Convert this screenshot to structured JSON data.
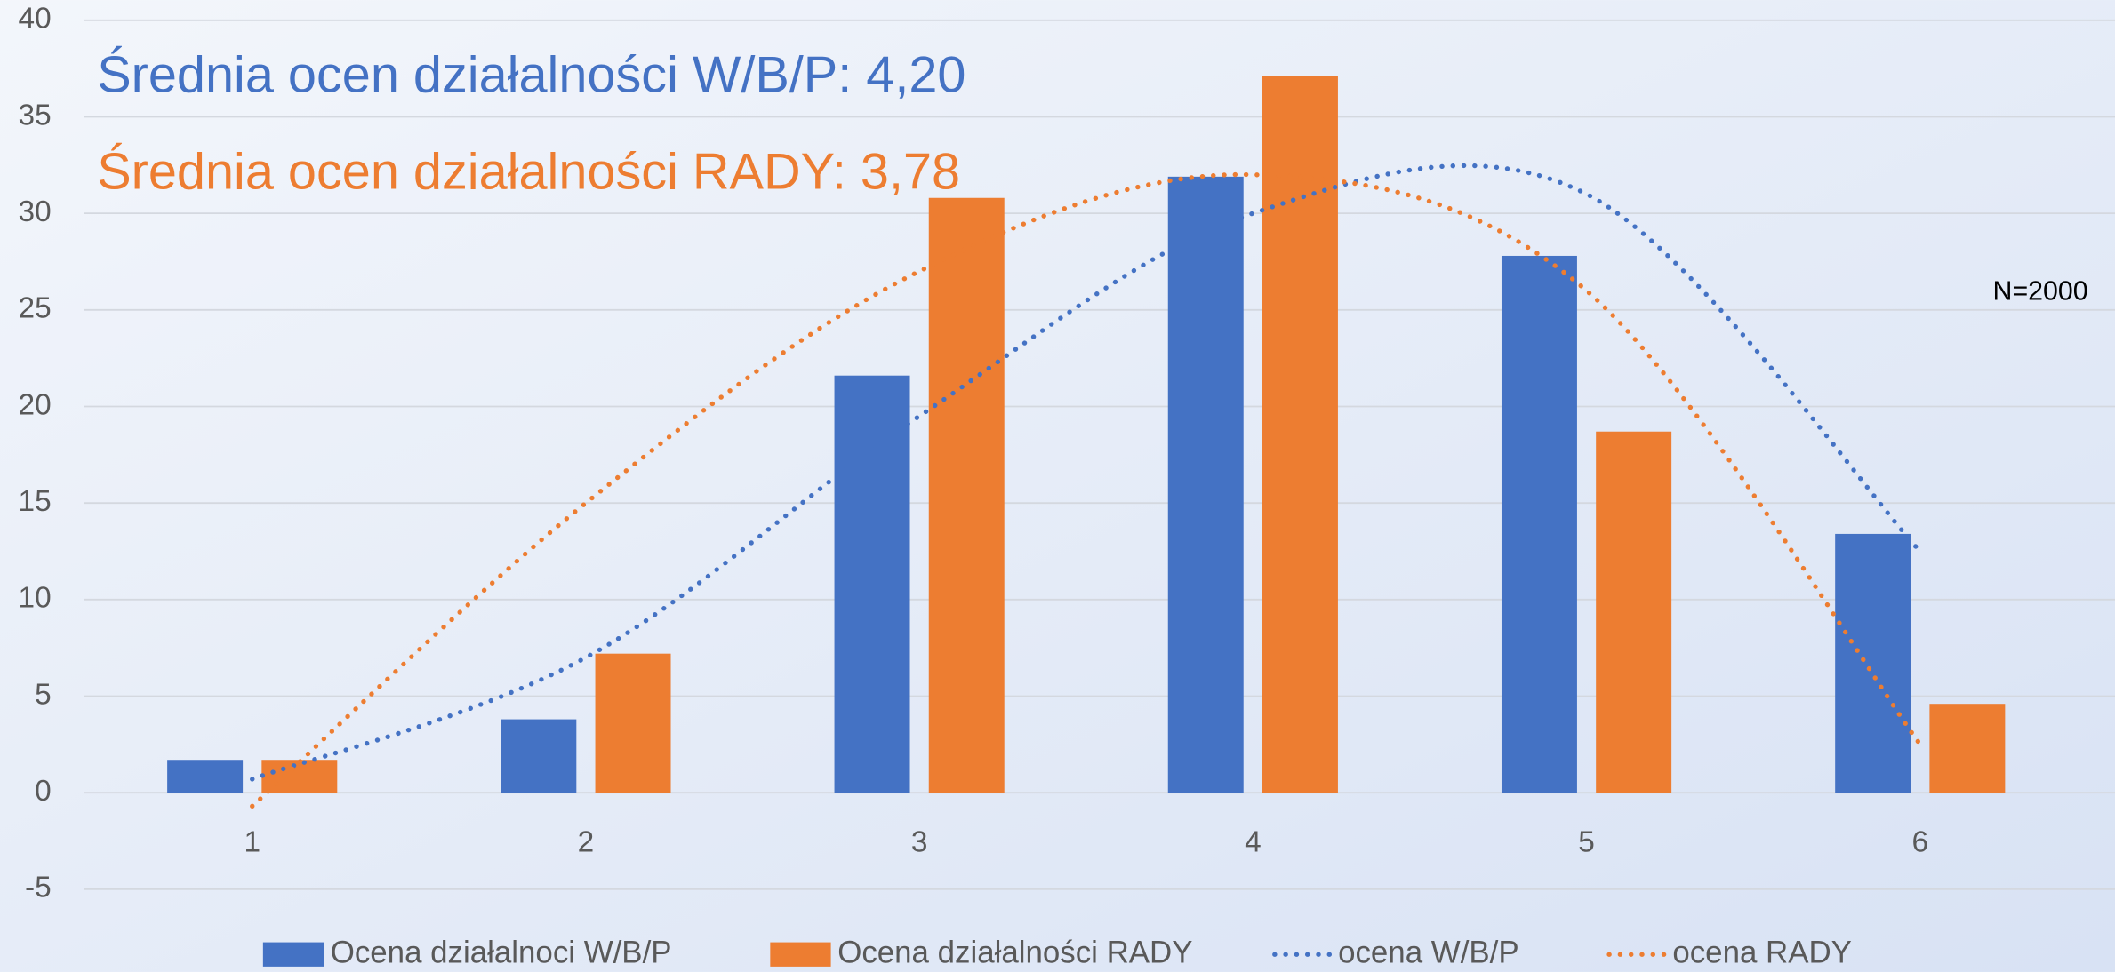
{
  "chart_data": {
    "type": "bar",
    "annotations": [
      {
        "text": "Średnia ocen działalności W/B/P: 4,20",
        "color": "#4472c4"
      },
      {
        "text": "Średnia ocen działalności RADY: 3,78",
        "color": "#ed7d31"
      },
      {
        "text": "N=2000",
        "color": "#000000"
      }
    ],
    "categories": [
      "1",
      "2",
      "3",
      "4",
      "5",
      "6"
    ],
    "series": [
      {
        "name": "Ocena działalnoci W/B/P",
        "type": "bar",
        "color": "#4472c4",
        "values": [
          1.7,
          3.8,
          21.6,
          31.9,
          27.8,
          13.4
        ]
      },
      {
        "name": "Ocena działalności RADY",
        "type": "bar",
        "color": "#ed7d31",
        "values": [
          1.7,
          7.2,
          30.8,
          37.1,
          18.7,
          4.6
        ]
      },
      {
        "name": "ocena W/B/P",
        "type": "trendline",
        "color": "#4472c4",
        "values": [
          0.7,
          7,
          19.5,
          30,
          31,
          12.5
        ]
      },
      {
        "name": "ocena RADY",
        "type": "trendline",
        "color": "#ed7d31",
        "values": [
          -0.7,
          15,
          27,
          32,
          26,
          2.5
        ]
      }
    ],
    "ylim": [
      -7,
      40
    ],
    "yticks": [
      -5,
      0,
      5,
      10,
      15,
      20,
      25,
      30,
      35,
      40
    ],
    "grid": true,
    "legend": "bottom"
  }
}
